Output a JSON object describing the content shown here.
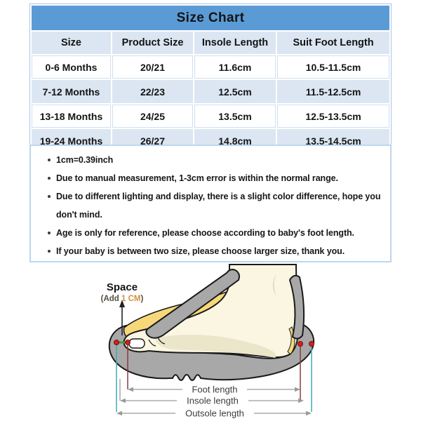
{
  "title": "Size Chart",
  "chart_data": {
    "type": "table",
    "title": "Size Chart",
    "columns": [
      "Size",
      "Product Size",
      "Insole Length",
      "Suit Foot Length"
    ],
    "rows": [
      [
        "0-6 Months",
        "20/21",
        "11.6cm",
        "10.5-11.5cm"
      ],
      [
        "7-12 Months",
        "22/23",
        "12.5cm",
        "11.5-12.5cm"
      ],
      [
        "13-18 Months",
        "24/25",
        "13.5cm",
        "12.5-13.5cm"
      ],
      [
        "19-24 Months",
        "26/27",
        "14.8cm",
        "13.5-14.5cm"
      ]
    ]
  },
  "notes": [
    "1cm=0.39inch",
    "Due to manual measurement, 1-3cm error is within the normal range.",
    "Due to different lighting and display, there is a slight color difference, hope you don't mind.",
    "Age is only for reference, please choose according to baby's foot length.",
    "If your baby is between two size, please choose larger size, thank you."
  ],
  "diagram": {
    "space_label": "Space",
    "space_prefix": "(Add ",
    "space_value": "1 CM",
    "space_suffix": ")",
    "measurements": [
      "Foot length",
      "Insole length",
      "Outsole length"
    ]
  },
  "colors": {
    "header_blue": "#5b9bd5",
    "row_light_blue": "#dbe6f2",
    "table_border": "#a9c6e6",
    "notes_border": "#bdd7ee",
    "text": "#141414",
    "shoe_gray": "#a8a8a8",
    "insole_yellow": "#f6d87a",
    "foot_cream": "#faf6e2",
    "dot_red": "#d41f1f",
    "space_gap_green": "#2fa43c",
    "foot_length_line": "#8b3a3a",
    "outsole_line_teal": "#3aacb8",
    "measure_line_gray": "#9a9a9a",
    "add_cm_orange": "#d6903f"
  }
}
